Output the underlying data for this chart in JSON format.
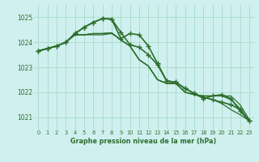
{
  "background_color": "#cff0ee",
  "grid_color": "#aaddcc",
  "line_color": "#2d6e2d",
  "title": "Graphe pression niveau de la mer (hPa)",
  "xlim": [
    -0.5,
    23.5
  ],
  "ylim": [
    1020.5,
    1025.5
  ],
  "yticks": [
    1021,
    1022,
    1023,
    1024,
    1025
  ],
  "xticks": [
    0,
    1,
    2,
    3,
    4,
    5,
    6,
    7,
    8,
    9,
    10,
    11,
    12,
    13,
    14,
    15,
    16,
    17,
    18,
    19,
    20,
    21,
    22,
    23
  ],
  "series": [
    {
      "x": [
        0,
        1,
        2,
        3,
        4,
        5,
        6,
        7,
        8,
        9,
        10,
        11,
        12,
        13,
        14,
        15,
        16,
        17,
        18,
        19,
        20,
        21,
        22,
        23
      ],
      "y": [
        1023.65,
        1023.75,
        1023.85,
        1024.0,
        1024.3,
        1024.3,
        1024.3,
        1024.3,
        1024.35,
        1024.1,
        1023.85,
        1023.3,
        1023.05,
        1022.5,
        1022.35,
        1022.35,
        1022.0,
        1021.9,
        1021.85,
        1021.85,
        1021.85,
        1021.85,
        1021.5,
        1020.9
      ],
      "marker": null,
      "lw": 0.9
    },
    {
      "x": [
        0,
        1,
        2,
        3,
        4,
        5,
        6,
        7,
        8,
        9,
        10,
        11,
        12,
        13,
        14,
        15,
        16,
        17,
        18,
        19,
        20,
        21,
        22,
        23
      ],
      "y": [
        1023.65,
        1023.75,
        1023.85,
        1024.0,
        1024.3,
        1024.3,
        1024.35,
        1024.35,
        1024.38,
        1024.1,
        1023.85,
        1023.3,
        1023.05,
        1022.5,
        1022.35,
        1022.35,
        1022.0,
        1021.9,
        1021.85,
        1021.85,
        1021.85,
        1021.7,
        1021.35,
        1020.85
      ],
      "marker": null,
      "lw": 0.9
    },
    {
      "x": [
        0,
        1,
        2,
        3,
        4,
        5,
        6,
        7,
        8,
        9,
        10,
        11,
        12,
        13,
        14,
        15,
        16,
        17,
        18,
        19,
        20,
        21,
        22,
        23
      ],
      "y": [
        1023.65,
        1023.75,
        1023.85,
        1024.0,
        1024.3,
        1024.3,
        1024.35,
        1024.35,
        1024.38,
        1024.1,
        1023.85,
        1023.3,
        1023.05,
        1022.5,
        1022.35,
        1022.35,
        1022.0,
        1021.9,
        1021.8,
        1021.7,
        1021.55,
        1021.3,
        1021.1,
        1020.85
      ],
      "marker": null,
      "lw": 0.9
    },
    {
      "x": [
        0,
        1,
        2,
        3,
        4,
        5,
        6,
        7,
        8,
        9,
        10,
        11,
        12,
        13,
        14,
        15,
        16,
        17,
        18,
        19,
        20,
        21,
        22,
        23
      ],
      "y": [
        1023.65,
        1023.75,
        1023.85,
        1024.0,
        1024.35,
        1024.6,
        1024.8,
        1024.95,
        1024.93,
        1024.4,
        1023.9,
        1023.8,
        1023.5,
        1023.1,
        1022.45,
        1022.4,
        1022.15,
        1021.95,
        1021.8,
        1021.7,
        1021.6,
        1021.5,
        1021.3,
        1020.85
      ],
      "marker": "+",
      "lw": 1.2,
      "ms": 4
    },
    {
      "x": [
        0,
        1,
        2,
        3,
        4,
        5,
        6,
        7,
        8,
        9,
        10,
        11,
        12,
        13,
        14,
        15,
        16,
        17,
        18,
        19,
        20,
        21,
        22,
        23
      ],
      "y": [
        1023.65,
        1023.75,
        1023.85,
        1024.0,
        1024.35,
        1024.6,
        1024.8,
        1024.95,
        1024.93,
        1024.15,
        1024.35,
        1024.3,
        1023.85,
        1023.15,
        1022.45,
        1022.4,
        1022.15,
        1021.95,
        1021.75,
        1021.85,
        1021.9,
        1021.75,
        1021.25,
        1020.85
      ],
      "marker": "+",
      "lw": 1.2,
      "ms": 4
    }
  ]
}
